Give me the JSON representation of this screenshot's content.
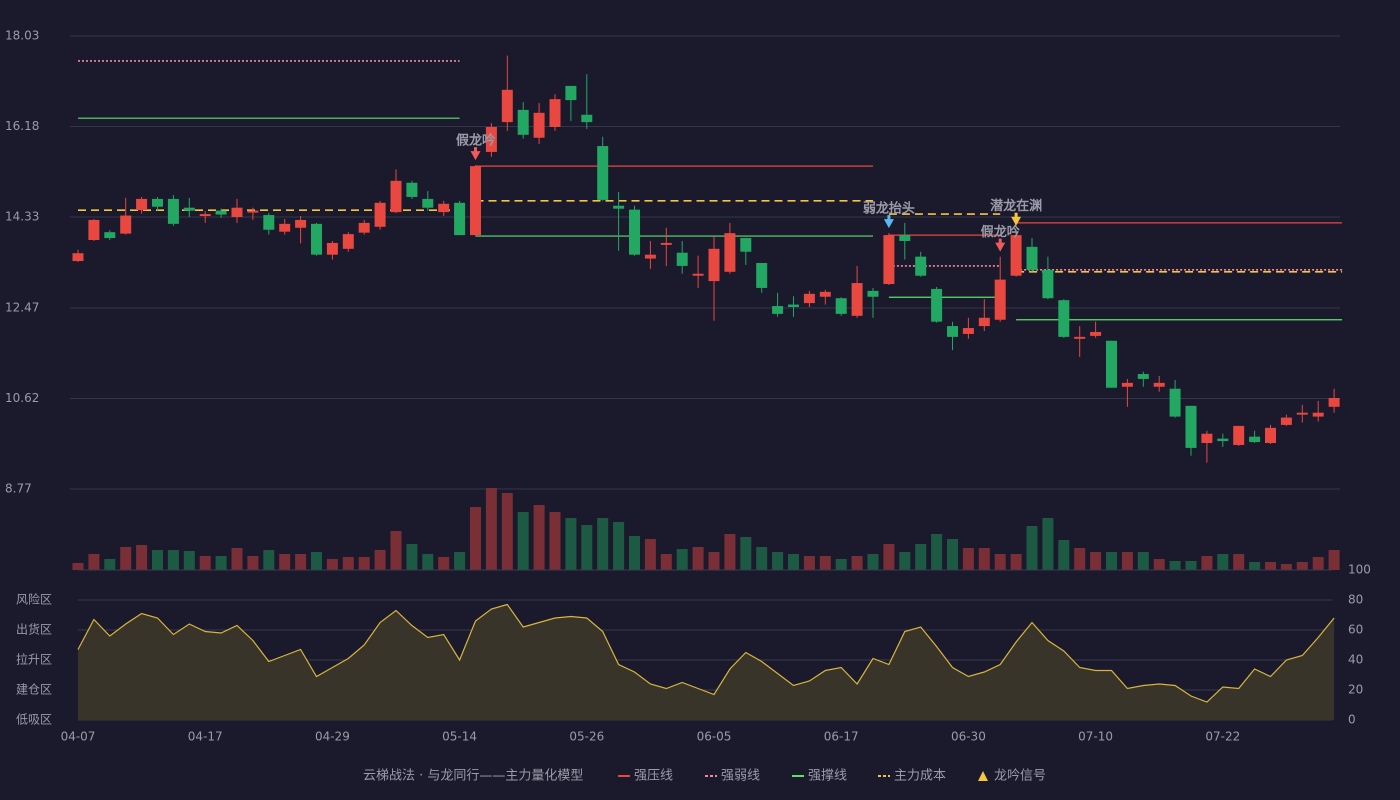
{
  "chart_data": [
    {
      "type": "candlestick",
      "ylim": [
        8.77,
        18.03
      ],
      "yticks": [
        8.77,
        10.62,
        12.47,
        14.33,
        16.18,
        18.03
      ],
      "grid": true,
      "up_color": "#e8483f",
      "down_color": "#22a863",
      "ohlc": [
        [
          13.43,
          13.66,
          13.41,
          13.59
        ],
        [
          13.86,
          14.29,
          13.84,
          14.27
        ],
        [
          14.02,
          14.06,
          13.86,
          13.9
        ],
        [
          13.99,
          14.72,
          13.97,
          14.36
        ],
        [
          14.47,
          14.74,
          14.4,
          14.7
        ],
        [
          14.7,
          14.74,
          14.46,
          14.54
        ],
        [
          14.7,
          14.78,
          14.15,
          14.19
        ],
        [
          14.52,
          14.72,
          14.33,
          14.46
        ],
        [
          14.35,
          14.45,
          14.21,
          14.39
        ],
        [
          14.46,
          14.5,
          14.31,
          14.38
        ],
        [
          14.33,
          14.7,
          14.21,
          14.52
        ],
        [
          14.42,
          14.52,
          14.27,
          14.46
        ],
        [
          14.37,
          14.41,
          13.97,
          14.07
        ],
        [
          14.03,
          14.29,
          13.97,
          14.19
        ],
        [
          14.11,
          14.35,
          13.79,
          14.27
        ],
        [
          14.19,
          14.21,
          13.54,
          13.56
        ],
        [
          13.56,
          13.84,
          13.46,
          13.8
        ],
        [
          13.68,
          14.02,
          13.62,
          13.98
        ],
        [
          14.01,
          14.27,
          13.97,
          14.21
        ],
        [
          14.13,
          14.66,
          14.07,
          14.62
        ],
        [
          14.43,
          15.3,
          14.41,
          15.07
        ],
        [
          15.03,
          15.07,
          14.7,
          14.74
        ],
        [
          14.7,
          14.86,
          14.46,
          14.52
        ],
        [
          14.43,
          14.66,
          14.35,
          14.6
        ],
        [
          14.62,
          14.66,
          13.96,
          13.96
        ],
        [
          13.96,
          15.39,
          13.94,
          15.37
        ],
        [
          15.66,
          16.25,
          15.56,
          16.17
        ],
        [
          16.27,
          17.63,
          16.09,
          16.93
        ],
        [
          16.52,
          16.68,
          15.93,
          16.01
        ],
        [
          15.95,
          16.66,
          15.82,
          16.46
        ],
        [
          16.17,
          16.84,
          16.09,
          16.74
        ],
        [
          17.01,
          17.01,
          16.29,
          16.72
        ],
        [
          16.42,
          17.25,
          16.13,
          16.27
        ],
        [
          15.78,
          15.97,
          14.66,
          14.68
        ],
        [
          14.56,
          14.84,
          13.64,
          14.5
        ],
        [
          14.48,
          14.56,
          13.54,
          13.56
        ],
        [
          13.48,
          13.84,
          13.27,
          13.56
        ],
        [
          13.76,
          14.11,
          13.33,
          13.8
        ],
        [
          13.6,
          13.84,
          13.17,
          13.33
        ],
        [
          13.13,
          13.54,
          12.88,
          13.17
        ],
        [
          13.02,
          13.94,
          12.21,
          13.68
        ],
        [
          13.21,
          14.21,
          13.17,
          14.0
        ],
        [
          13.9,
          13.9,
          13.35,
          13.62
        ],
        [
          13.39,
          13.39,
          12.78,
          12.88
        ],
        [
          12.51,
          12.78,
          12.29,
          12.35
        ],
        [
          12.54,
          12.71,
          12.29,
          12.49
        ],
        [
          12.57,
          12.82,
          12.49,
          12.76
        ],
        [
          12.7,
          12.84,
          12.54,
          12.8
        ],
        [
          12.67,
          12.69,
          12.31,
          12.35
        ],
        [
          12.31,
          13.33,
          12.27,
          12.98
        ],
        [
          12.82,
          12.88,
          12.27,
          12.7
        ],
        [
          12.96,
          14.0,
          12.94,
          13.96
        ],
        [
          13.96,
          14.21,
          13.46,
          13.84
        ],
        [
          13.52,
          13.62,
          13.11,
          13.13
        ],
        [
          12.86,
          12.9,
          12.17,
          12.19
        ],
        [
          12.1,
          12.19,
          11.61,
          11.88
        ],
        [
          11.94,
          12.27,
          11.84,
          12.06
        ],
        [
          12.1,
          12.65,
          12.0,
          12.27
        ],
        [
          12.23,
          13.52,
          12.19,
          13.05
        ],
        [
          13.13,
          14.05,
          13.11,
          13.96
        ],
        [
          13.72,
          13.9,
          13.21,
          13.25
        ],
        [
          13.25,
          13.52,
          12.65,
          12.67
        ],
        [
          12.63,
          12.65,
          11.86,
          11.88
        ],
        [
          11.84,
          12.1,
          11.47,
          11.88
        ],
        [
          11.9,
          12.19,
          11.86,
          11.98
        ],
        [
          11.8,
          11.8,
          10.84,
          10.84
        ],
        [
          10.86,
          11.02,
          10.45,
          10.94
        ],
        [
          11.12,
          11.17,
          10.86,
          11.02
        ],
        [
          10.86,
          11.08,
          10.76,
          10.94
        ],
        [
          10.82,
          11.0,
          10.23,
          10.25
        ],
        [
          10.47,
          10.47,
          9.45,
          9.61
        ],
        [
          9.71,
          9.96,
          9.31,
          9.9
        ],
        [
          9.8,
          9.9,
          9.63,
          9.75
        ],
        [
          9.67,
          10.06,
          9.65,
          10.06
        ],
        [
          9.84,
          9.96,
          9.71,
          9.73
        ],
        [
          9.71,
          10.08,
          9.69,
          10.02
        ],
        [
          10.08,
          10.29,
          10.06,
          10.23
        ],
        [
          10.29,
          10.49,
          10.13,
          10.33
        ],
        [
          10.25,
          10.57,
          10.15,
          10.33
        ],
        [
          10.45,
          10.82,
          10.33,
          10.63
        ]
      ],
      "series": [
        {
          "name": "强压线",
          "color": "#e8483f",
          "dash": false,
          "segments": [
            {
              "start": 25,
              "end": 50,
              "value": 15.37
            },
            {
              "start": 51,
              "end": 58,
              "value": 13.96
            },
            {
              "start": 59,
              "end": 79,
              "value": 14.21
            }
          ]
        },
        {
          "name": "强弱线",
          "color": "#f08a9a",
          "dash": true,
          "segments": [
            {
              "start": 0,
              "end": 24,
              "value": 17.52
            },
            {
              "start": 51,
              "end": 58,
              "value": 13.33
            },
            {
              "start": 59,
              "end": 79,
              "value": 13.25
            }
          ]
        },
        {
          "name": "强撑线",
          "color": "#5ee06a",
          "dash": false,
          "segments": [
            {
              "start": 0,
              "end": 24,
              "value": 16.35
            },
            {
              "start": 25,
              "end": 50,
              "value": 13.94
            },
            {
              "start": 51,
              "end": 58,
              "value": 12.69
            },
            {
              "start": 59,
              "end": 79,
              "value": 12.23
            }
          ]
        },
        {
          "name": "主力成本",
          "color": "#f5c542",
          "dash": true,
          "segments": [
            {
              "start": 0,
              "end": 24,
              "value": 14.47
            },
            {
              "start": 25,
              "end": 50,
              "value": 14.66
            },
            {
              "start": 51,
              "end": 58,
              "value": 14.39
            },
            {
              "start": 59,
              "end": 79,
              "value": 13.21
            }
          ]
        }
      ],
      "signals": [
        {
          "label": "假龙吟",
          "index": 25,
          "color": "#f05a5a"
        },
        {
          "label": "弱龙抬头",
          "index": 51,
          "color": "#5ab8f5"
        },
        {
          "label": "假龙吟",
          "index": 58,
          "color": "#f05a5a"
        },
        {
          "label": "潜龙在渊",
          "index": 59,
          "color": "#f5c542"
        }
      ],
      "legend_title": "云梯战法 · 与龙同行——主力量化模型",
      "signal_name": "龙吟信号",
      "signal_color": "#f5c542"
    },
    {
      "type": "bar",
      "ylim": [
        0,
        82
      ],
      "up_color": "#7a2e36",
      "down_color": "#1d5a44",
      "values": [
        7,
        16,
        11,
        23,
        25,
        20,
        20,
        19,
        14,
        14,
        22,
        14,
        20,
        16,
        16,
        18,
        11,
        13,
        13,
        20,
        39,
        26,
        16,
        13,
        18,
        63,
        82,
        77,
        58,
        65,
        58,
        52,
        45,
        52,
        48,
        34,
        31,
        16,
        21,
        23,
        18,
        36,
        33,
        23,
        18,
        16,
        14,
        14,
        11,
        14,
        16,
        26,
        18,
        26,
        36,
        31,
        22,
        22,
        16,
        16,
        44,
        52,
        30,
        22,
        18,
        18,
        18,
        18,
        11,
        9,
        9,
        14,
        16,
        16,
        8,
        8,
        6,
        8,
        13,
        20
      ]
    },
    {
      "type": "line",
      "color": "#d8b43a",
      "fill": "#39342a",
      "ylim": [
        0,
        100
      ],
      "yticks": [
        0,
        20,
        40,
        60,
        80,
        100
      ],
      "ytick_colors": [
        "#ff4d4d",
        "#ff8c3a",
        "#4da6ff",
        "#e040fb",
        "#ffb74d",
        "#3ce36a"
      ],
      "grid": true,
      "zones": [
        {
          "label": "风险区",
          "value": 80,
          "color": "#ffb74d"
        },
        {
          "label": "出货区",
          "value": 60,
          "color": "#e040fb"
        },
        {
          "label": "拉升区",
          "value": 40,
          "color": "#4da6ff"
        },
        {
          "label": "建仓区",
          "value": 20,
          "color": "#ff5a6a"
        },
        {
          "label": "低吸区",
          "value": 0,
          "color": "#ff4d6a"
        }
      ],
      "categories": [
        "04-07",
        null,
        null,
        null,
        null,
        null,
        null,
        null,
        "04-17",
        null,
        null,
        null,
        null,
        null,
        null,
        null,
        "04-29",
        null,
        null,
        null,
        null,
        null,
        null,
        null,
        "05-14",
        null,
        null,
        null,
        null,
        null,
        null,
        null,
        "05-26",
        null,
        null,
        null,
        null,
        null,
        null,
        null,
        "06-05",
        null,
        null,
        null,
        null,
        null,
        null,
        null,
        "06-17",
        null,
        null,
        null,
        null,
        null,
        null,
        null,
        "06-30",
        null,
        null,
        null,
        null,
        null,
        null,
        null,
        "07-10",
        null,
        null,
        null,
        null,
        null,
        null,
        null,
        "07-22",
        null,
        null,
        null,
        null,
        null,
        null,
        null
      ],
      "values": [
        47,
        67,
        56,
        64,
        71,
        68,
        57,
        64,
        59,
        58,
        63,
        53,
        39,
        43,
        47,
        29,
        35,
        41,
        50,
        65,
        73,
        63,
        55,
        57,
        40,
        66,
        74,
        77,
        62,
        65,
        68,
        69,
        68,
        59,
        37,
        32,
        24,
        21,
        25,
        21,
        17,
        34,
        45,
        39,
        31,
        23,
        26,
        33,
        35,
        24,
        41,
        37,
        59,
        62,
        49,
        35,
        29,
        32,
        37,
        52,
        65,
        53,
        46,
        35,
        33,
        33,
        21,
        23,
        24,
        23,
        16,
        12,
        22,
        21,
        34,
        29,
        40,
        43,
        55,
        68
      ]
    }
  ]
}
